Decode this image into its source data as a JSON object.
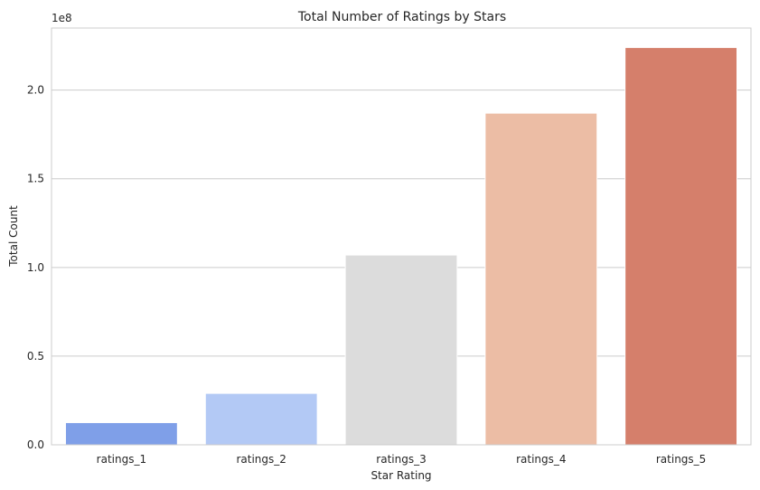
{
  "chart_data": {
    "type": "bar",
    "title": "Total Number of Ratings by Stars",
    "xlabel": "Star Rating",
    "ylabel": "Total Count",
    "offset_label": "1e8",
    "categories": [
      "ratings_1",
      "ratings_2",
      "ratings_3",
      "ratings_4",
      "ratings_5"
    ],
    "values": [
      12500000,
      29000000,
      107000000,
      187000000,
      224000000
    ],
    "colors": [
      "#7f9fe8",
      "#b3c9f5",
      "#dcdcdc",
      "#ecbda5",
      "#d57f6b"
    ],
    "ylim": [
      0,
      235000000
    ],
    "yticks": [
      0,
      50000000,
      100000000,
      150000000,
      200000000
    ],
    "ytick_labels": [
      "0.0",
      "0.5",
      "1.0",
      "1.5",
      "2.0"
    ],
    "grid": true,
    "legend": "none"
  }
}
